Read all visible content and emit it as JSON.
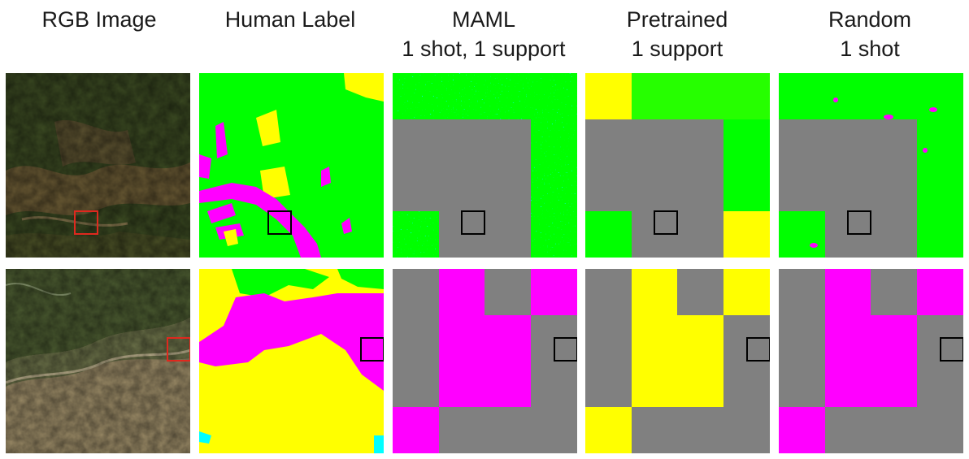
{
  "figure": {
    "columns": [
      {
        "id": "rgb",
        "line1": "RGB Image",
        "line2": ""
      },
      {
        "id": "human",
        "line1": "Human Label",
        "line2": ""
      },
      {
        "id": "maml",
        "line1": "MAML",
        "line2": "1 shot, 1 support"
      },
      {
        "id": "pretrained",
        "line1": "Pretrained",
        "line2": "1 support"
      },
      {
        "id": "random",
        "line1": "Random",
        "line2": "1 shot"
      }
    ],
    "class_colors": {
      "green": "#00ff00",
      "yellow": "#ffff00",
      "magenta": "#ff00ff",
      "gray": "#808080",
      "cyan": "#00ffff"
    },
    "highlight_box_colors": {
      "rgb_panel": "#e0281e",
      "label_panels": "#000000"
    }
  }
}
